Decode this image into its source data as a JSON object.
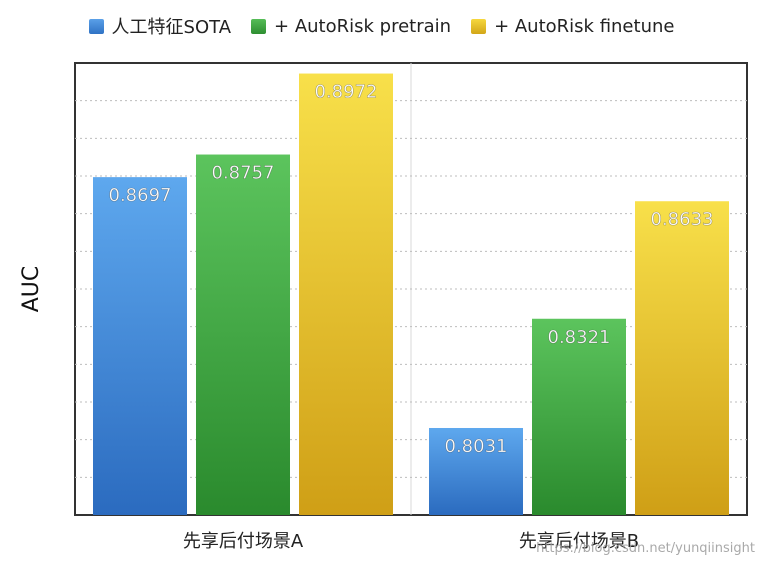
{
  "chart_data": {
    "type": "bar",
    "ylabel": "AUC",
    "xlabel": "",
    "categories": [
      "先享后付场景A",
      "先享后付场景B"
    ],
    "series": [
      {
        "name": "人工特征SOTA",
        "values": [
          0.8697,
          0.8031
        ],
        "color": "#3a83d6"
      },
      {
        "name": "+ AutoRisk pretrain",
        "values": [
          0.8757,
          0.8321
        ],
        "color": "#3a9f3c"
      },
      {
        "name": "+ AutoRisk finetune",
        "values": [
          0.8972,
          0.8633
        ],
        "color": "#e2b823"
      }
    ],
    "ylim": [
      0.78,
      0.9
    ],
    "grid": true,
    "legend_position": "top"
  },
  "watermark": "https://blog.csdn.net/yunqiinsight"
}
